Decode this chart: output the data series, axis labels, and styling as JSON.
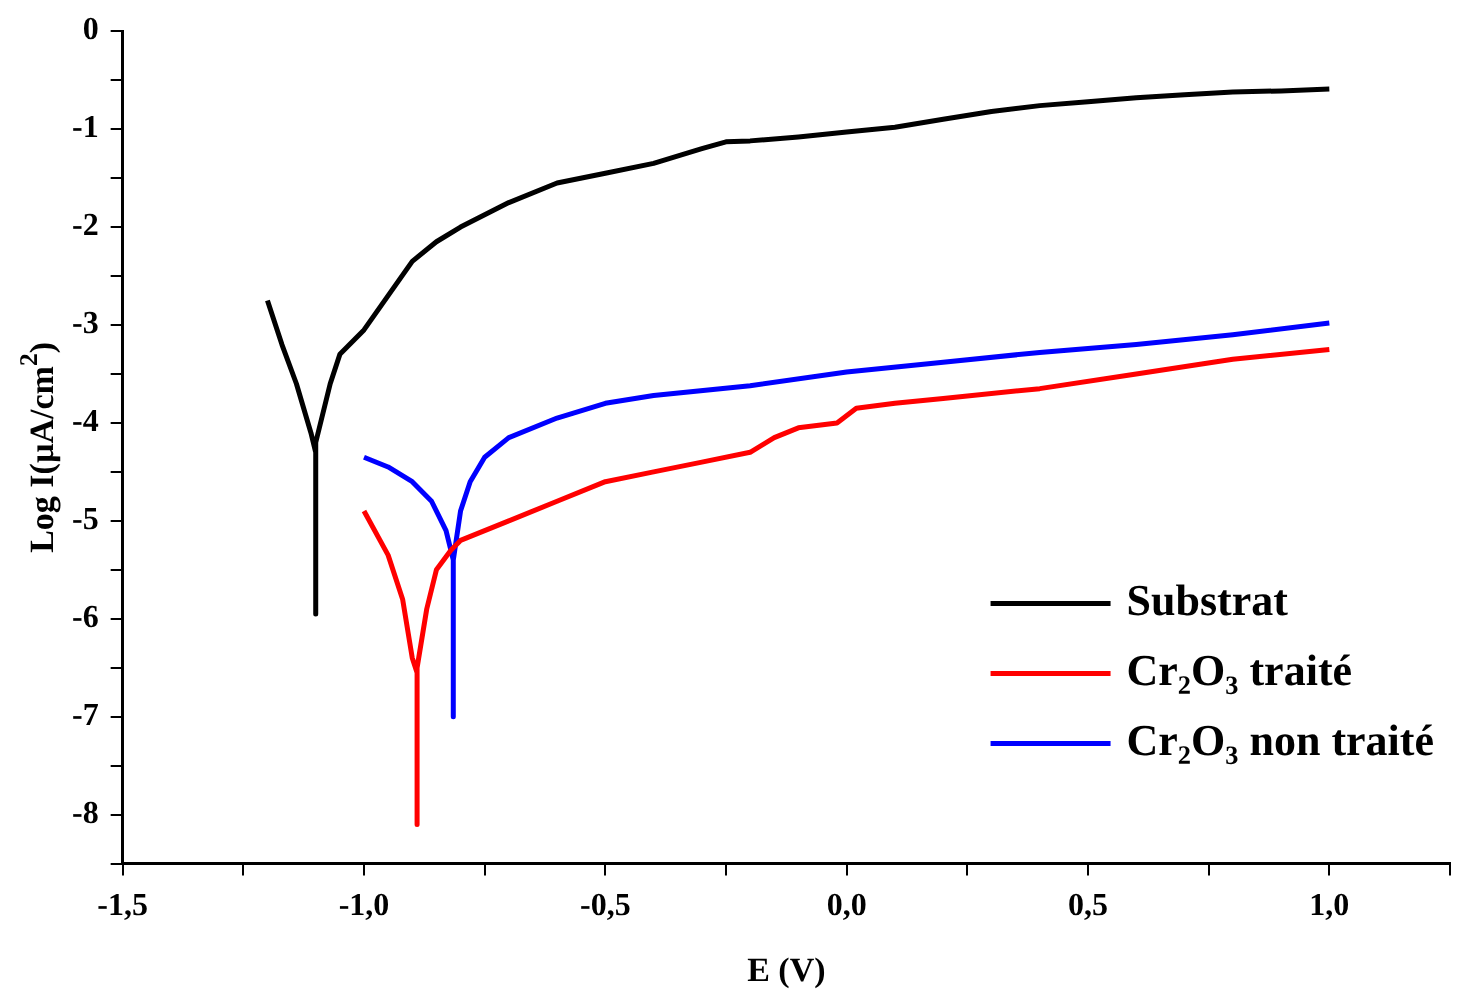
{
  "chart_data": {
    "type": "line",
    "xlabel": "E (V)",
    "ylabel": "Log I(µA/cm$^{2}$)",
    "xlim": [
      -1.5,
      1.25
    ],
    "xticks": [
      {
        "value": -1.5,
        "label": "-1,5"
      },
      {
        "value": -1.25,
        "label": null
      },
      {
        "value": -1.0,
        "label": "-1,0"
      },
      {
        "value": -0.75,
        "label": null
      },
      {
        "value": -0.5,
        "label": "-0,5"
      },
      {
        "value": -0.25,
        "label": null
      },
      {
        "value": 0,
        "label": "0,0"
      },
      {
        "value": 0.25,
        "label": null
      },
      {
        "value": 0.5,
        "label": "0,5"
      },
      {
        "value": 0.75,
        "label": null
      },
      {
        "value": 1.0,
        "label": "1,0"
      },
      {
        "value": 1.25,
        "label": null
      }
    ],
    "ylim": [
      -8.5,
      0
    ],
    "yticks": [
      {
        "value": -8.5,
        "label": null
      },
      -8,
      {
        "value": -7.5,
        "label": null
      },
      -7,
      {
        "value": -6.5,
        "label": null
      },
      -6,
      {
        "value": -5.5,
        "label": null
      },
      -5,
      {
        "value": -4.5,
        "label": null
      },
      -4,
      {
        "value": -3.5,
        "label": null
      },
      -3,
      {
        "value": -2.5,
        "label": null
      },
      -2,
      {
        "value": -1.5,
        "label": null
      },
      -1,
      {
        "value": -0.5,
        "label": null
      },
      0
    ],
    "grid": false,
    "legend": "bottom right",
    "marker": "none",
    "line_style": "solid",
    "series": [
      {
        "name": "Substrat",
        "color": "#000000",
        "x": [
          -1.2,
          -1.17,
          -1.14,
          -1.11,
          -1.1,
          -1.1,
          -1.1,
          -1.07,
          -1.05,
          -1.0,
          -0.95,
          -0.9,
          -0.85,
          -0.8,
          -0.7,
          -0.6,
          -0.5,
          -0.4,
          -0.3,
          -0.25,
          -0.2,
          -0.1,
          0,
          0.1,
          0.2,
          0.3,
          0.4,
          0.5,
          0.6,
          0.7,
          0.8,
          0.9,
          1.0
        ],
        "values": [
          -2.75,
          -3.2,
          -3.6,
          -4.1,
          -4.3,
          -5.95,
          -4.2,
          -3.6,
          -3.3,
          -3.05,
          -2.7,
          -2.35,
          -2.15,
          -2.0,
          -1.75,
          -1.55,
          -1.45,
          -1.35,
          -1.2,
          -1.13,
          -1.12,
          -1.08,
          -1.03,
          -0.98,
          -0.9,
          -0.82,
          -0.76,
          -0.72,
          -0.68,
          -0.65,
          -0.62,
          -0.61,
          -0.59
        ]
      },
      {
        "name": "Cr₂O₃ traité",
        "color": "#ff0000",
        "x": [
          -1.0,
          -0.95,
          -0.92,
          -0.9,
          -0.89,
          -0.89,
          -0.89,
          -0.87,
          -0.85,
          -0.82,
          -0.8,
          -0.7,
          -0.6,
          -0.5,
          -0.4,
          -0.3,
          -0.2,
          -0.15,
          -0.1,
          -0.02,
          0.02,
          0.1,
          0.2,
          0.4,
          0.6,
          0.8,
          1.0
        ],
        "values": [
          -4.9,
          -5.35,
          -5.8,
          -6.4,
          -6.55,
          -8.1,
          -6.5,
          -5.9,
          -5.5,
          -5.3,
          -5.2,
          -5.0,
          -4.8,
          -4.6,
          -4.5,
          -4.4,
          -4.3,
          -4.15,
          -4.05,
          -4.0,
          -3.85,
          -3.8,
          -3.75,
          -3.65,
          -3.5,
          -3.35,
          -3.25
        ]
      },
      {
        "name": "Cr₂O₃ non traité",
        "color": "#0000ff",
        "x": [
          -1.0,
          -0.95,
          -0.9,
          -0.86,
          -0.83,
          -0.815,
          -0.815,
          -0.815,
          -0.8,
          -0.78,
          -0.75,
          -0.7,
          -0.6,
          -0.5,
          -0.4,
          -0.2,
          0,
          0.2,
          0.4,
          0.6,
          0.8,
          1.0
        ],
        "values": [
          -4.35,
          -4.45,
          -4.6,
          -4.8,
          -5.1,
          -5.4,
          -7.0,
          -5.4,
          -4.9,
          -4.6,
          -4.35,
          -4.15,
          -3.95,
          -3.8,
          -3.72,
          -3.62,
          -3.48,
          -3.38,
          -3.28,
          -3.2,
          -3.1,
          -2.98
        ]
      }
    ]
  }
}
